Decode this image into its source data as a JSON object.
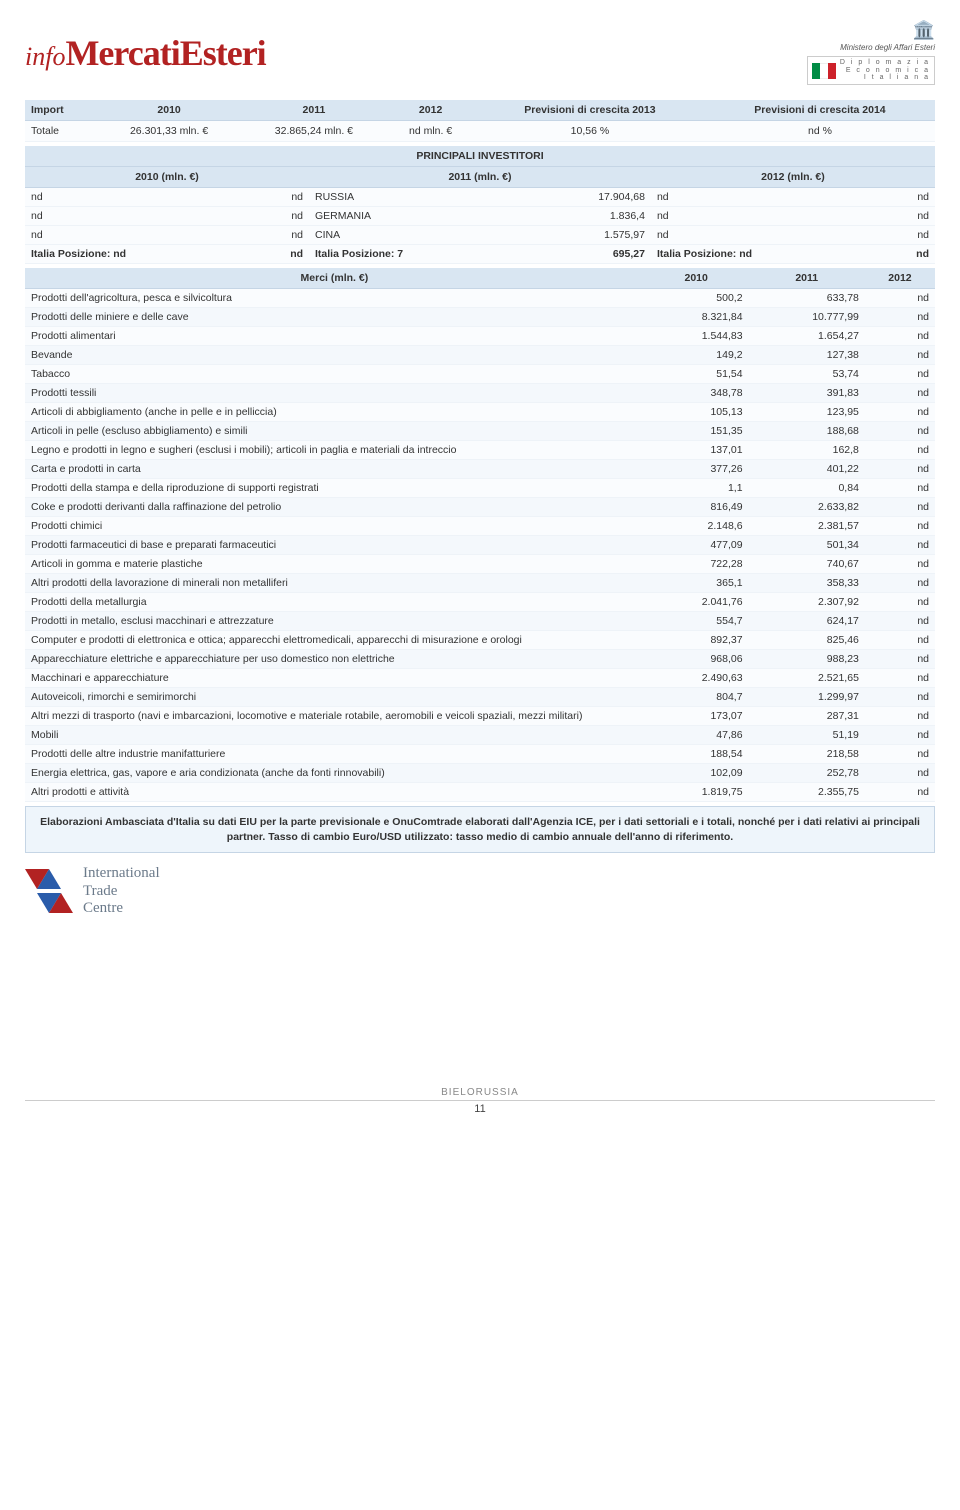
{
  "header": {
    "logo_info": "info",
    "logo_mercati": "MercatiEsteri",
    "ministero": "Ministero degli Affari Esteri",
    "dei_line1": "D i p l o m a z i a",
    "dei_line2": "E c o n o m i c a",
    "dei_line3": "I t a l i a n a"
  },
  "import_table": {
    "cols": [
      "Import",
      "2010",
      "2011",
      "2012",
      "Previsioni di crescita 2013",
      "Previsioni di crescita 2014"
    ],
    "row_label": "Totale",
    "row": [
      "26.301,33 mln. €",
      "32.865,24 mln. €",
      "nd mln. €",
      "10,56 %",
      "nd %"
    ]
  },
  "investors": {
    "title": "PRINCIPALI INVESTITORI",
    "year_cols": [
      "2010 (mln. €)",
      "2011 (mln. €)",
      "2012 (mln. €)"
    ],
    "rows": [
      {
        "c0": "nd",
        "c1": "nd",
        "country": "RUSSIA",
        "val": "17.904,68",
        "c2": "nd",
        "c3": "nd"
      },
      {
        "c0": "nd",
        "c1": "nd",
        "country": "GERMANIA",
        "val": "1.836,4",
        "c2": "nd",
        "c3": "nd"
      },
      {
        "c0": "nd",
        "c1": "nd",
        "country": "CINA",
        "val": "1.575,97",
        "c2": "nd",
        "c3": "nd"
      }
    ],
    "italia": {
      "l0": "Italia Posizione: nd",
      "l1": "nd",
      "m0": "Italia Posizione: 7",
      "m1": "695,27",
      "r0": "Italia Posizione: nd",
      "r1": "nd"
    }
  },
  "merci": {
    "header_label": "Merci (mln. €)",
    "cols": [
      "2010",
      "2011",
      "2012"
    ],
    "rows": [
      {
        "label": "Prodotti dell'agricoltura, pesca e silvicoltura",
        "v": [
          "500,2",
          "633,78",
          "nd"
        ]
      },
      {
        "label": "Prodotti delle miniere e delle cave",
        "v": [
          "8.321,84",
          "10.777,99",
          "nd"
        ]
      },
      {
        "label": "Prodotti alimentari",
        "v": [
          "1.544,83",
          "1.654,27",
          "nd"
        ]
      },
      {
        "label": "Bevande",
        "v": [
          "149,2",
          "127,38",
          "nd"
        ]
      },
      {
        "label": "Tabacco",
        "v": [
          "51,54",
          "53,74",
          "nd"
        ]
      },
      {
        "label": "Prodotti tessili",
        "v": [
          "348,78",
          "391,83",
          "nd"
        ]
      },
      {
        "label": "Articoli di abbigliamento (anche in pelle e in pelliccia)",
        "v": [
          "105,13",
          "123,95",
          "nd"
        ]
      },
      {
        "label": "Articoli in pelle (escluso abbigliamento) e simili",
        "v": [
          "151,35",
          "188,68",
          "nd"
        ]
      },
      {
        "label": "Legno e prodotti in legno e sugheri (esclusi i mobili); articoli in paglia e materiali da intreccio",
        "v": [
          "137,01",
          "162,8",
          "nd"
        ]
      },
      {
        "label": "Carta e prodotti in carta",
        "v": [
          "377,26",
          "401,22",
          "nd"
        ]
      },
      {
        "label": "Prodotti della stampa e della riproduzione di supporti registrati",
        "v": [
          "1,1",
          "0,84",
          "nd"
        ]
      },
      {
        "label": "Coke e prodotti derivanti dalla raffinazione del petrolio",
        "v": [
          "816,49",
          "2.633,82",
          "nd"
        ]
      },
      {
        "label": "Prodotti chimici",
        "v": [
          "2.148,6",
          "2.381,57",
          "nd"
        ]
      },
      {
        "label": "Prodotti farmaceutici di base e preparati farmaceutici",
        "v": [
          "477,09",
          "501,34",
          "nd"
        ]
      },
      {
        "label": "Articoli in gomma e materie plastiche",
        "v": [
          "722,28",
          "740,67",
          "nd"
        ]
      },
      {
        "label": "Altri prodotti della lavorazione di minerali non metalliferi",
        "v": [
          "365,1",
          "358,33",
          "nd"
        ]
      },
      {
        "label": "Prodotti della metallurgia",
        "v": [
          "2.041,76",
          "2.307,92",
          "nd"
        ]
      },
      {
        "label": "Prodotti in metallo, esclusi macchinari e attrezzature",
        "v": [
          "554,7",
          "624,17",
          "nd"
        ]
      },
      {
        "label": "Computer e prodotti di elettronica e ottica; apparecchi elettromedicali, apparecchi di misurazione e orologi",
        "v": [
          "892,37",
          "825,46",
          "nd"
        ]
      },
      {
        "label": "Apparecchiature elettriche e apparecchiature per uso domestico non elettriche",
        "v": [
          "968,06",
          "988,23",
          "nd"
        ]
      },
      {
        "label": "Macchinari e apparecchiature",
        "v": [
          "2.490,63",
          "2.521,65",
          "nd"
        ]
      },
      {
        "label": "Autoveicoli, rimorchi e semirimorchi",
        "v": [
          "804,7",
          "1.299,97",
          "nd"
        ]
      },
      {
        "label": "Altri mezzi di trasporto (navi e imbarcazioni, locomotive e materiale rotabile, aeromobili e veicoli spaziali, mezzi militari)",
        "v": [
          "173,07",
          "287,31",
          "nd"
        ]
      },
      {
        "label": "Mobili",
        "v": [
          "47,86",
          "51,19",
          "nd"
        ]
      },
      {
        "label": "Prodotti delle altre industrie manifatturiere",
        "v": [
          "188,54",
          "218,58",
          "nd"
        ]
      },
      {
        "label": "Energia elettrica, gas, vapore e aria condizionata (anche da fonti rinnovabili)",
        "v": [
          "102,09",
          "252,78",
          "nd"
        ]
      },
      {
        "label": "Altri prodotti e attività",
        "v": [
          "1.819,75",
          "2.355,75",
          "nd"
        ]
      }
    ]
  },
  "note": "Elaborazioni Ambasciata d'Italia su dati EIU per la parte previsionale e OnuComtrade elaborati dall'Agenzia ICE, per i dati settoriali e i totali, nonché per i dati relativi ai principali partner. Tasso di cambio Euro/USD utilizzato: tasso medio di cambio annuale dell'anno di riferimento.",
  "itc": {
    "l1": "International",
    "l2": "Trade",
    "l3": "Centre"
  },
  "footer": {
    "country": "BIELORUSSIA",
    "page": "11"
  }
}
